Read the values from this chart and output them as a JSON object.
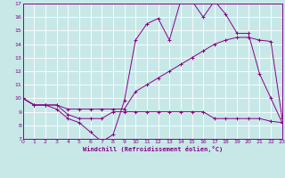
{
  "xlabel": "Windchill (Refroidissement éolien,°C)",
  "bg_color": "#c8e8e8",
  "grid_color": "#b0d8d8",
  "line_color": "#880088",
  "xlim": [
    0,
    23
  ],
  "ylim": [
    7,
    17
  ],
  "xticks": [
    0,
    1,
    2,
    3,
    4,
    5,
    6,
    7,
    8,
    9,
    10,
    11,
    12,
    13,
    14,
    15,
    16,
    17,
    18,
    19,
    20,
    21,
    22,
    23
  ],
  "yticks": [
    7,
    8,
    9,
    10,
    11,
    12,
    13,
    14,
    15,
    16,
    17
  ],
  "x": [
    0,
    1,
    2,
    3,
    4,
    5,
    6,
    7,
    8,
    9,
    10,
    11,
    12,
    13,
    14,
    15,
    16,
    17,
    18,
    19,
    20,
    21,
    22,
    23
  ],
  "line1_y": [
    10.0,
    9.5,
    9.5,
    9.2,
    8.5,
    8.2,
    7.5,
    6.8,
    7.3,
    9.8,
    14.3,
    15.5,
    15.9,
    14.3,
    17.2,
    17.2,
    16.0,
    17.2,
    16.2,
    14.8,
    14.8,
    11.8,
    10.0,
    8.2
  ],
  "line2_y": [
    10.0,
    9.5,
    9.5,
    9.5,
    8.8,
    8.5,
    8.5,
    8.5,
    9.0,
    9.0,
    9.0,
    9.0,
    9.0,
    9.0,
    9.0,
    9.0,
    9.0,
    8.5,
    8.5,
    8.5,
    8.5,
    8.5,
    8.3,
    8.2
  ],
  "line3_y": [
    10.0,
    9.5,
    9.5,
    9.5,
    9.2,
    9.2,
    9.2,
    9.2,
    9.2,
    9.2,
    10.5,
    11.0,
    11.5,
    12.0,
    12.5,
    13.0,
    13.5,
    14.0,
    14.3,
    14.5,
    14.5,
    14.3,
    14.2,
    8.5
  ]
}
